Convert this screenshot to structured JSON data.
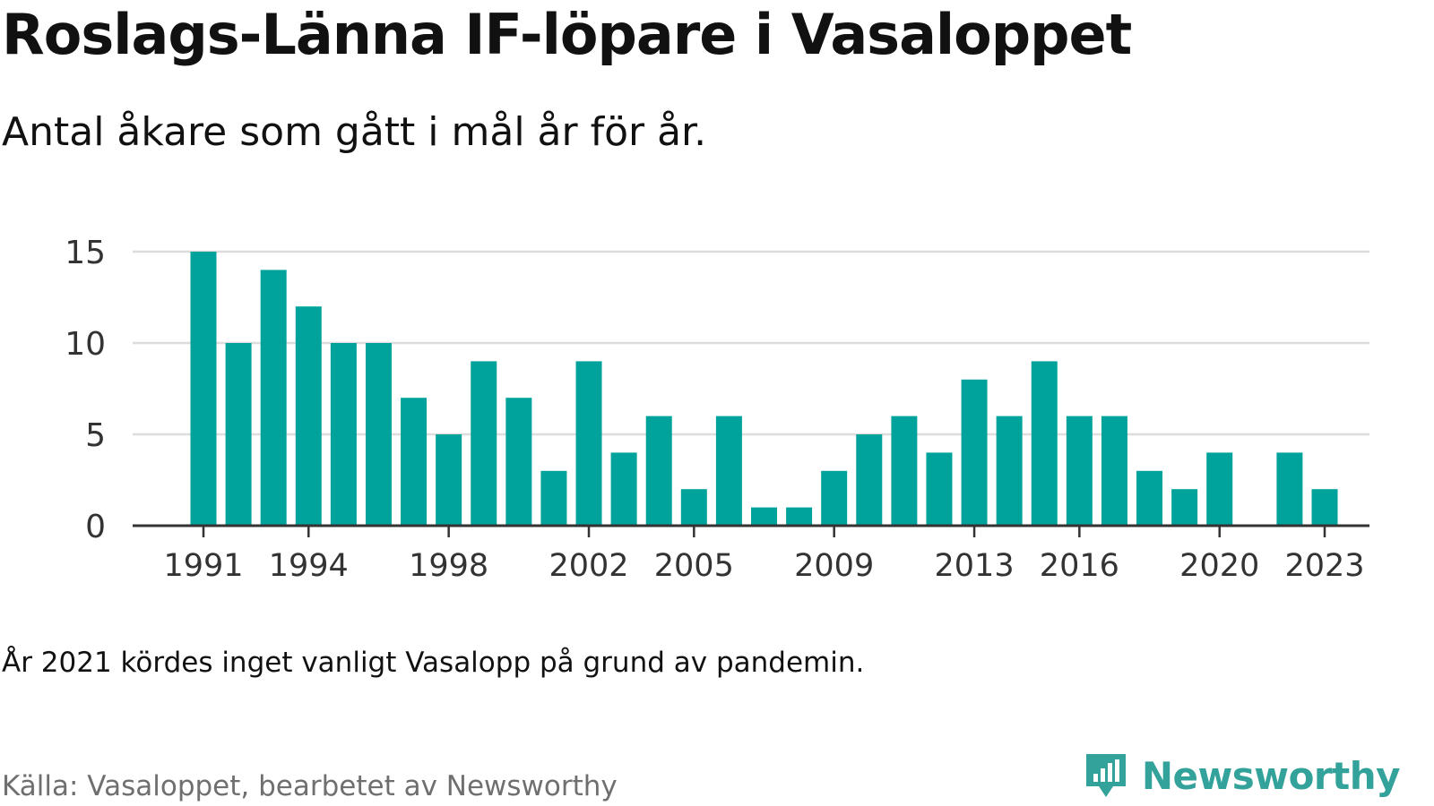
{
  "header": {
    "title": "Roslags-Länna IF-löpare i Vasaloppet",
    "subtitle": "Antal åkare som gått i mål år för år."
  },
  "footer": {
    "note": "År 2021 kördes inget vanligt Vasalopp på grund av pandemin.",
    "source": "Källa: Vasaloppet, bearbetet av Newsworthy",
    "brand": "Newsworthy",
    "brand_icon": "newsworthy-chart-icon"
  },
  "colors": {
    "bar": "#00a39b",
    "grid": "#dddddd",
    "axis": "#333333",
    "brand": "#33a29a",
    "source_text": "#6f6f6f"
  },
  "chart_data": {
    "type": "bar",
    "title": "Roslags-Länna IF-löpare i Vasaloppet",
    "x": [
      1991,
      1992,
      1993,
      1994,
      1995,
      1996,
      1997,
      1998,
      1999,
      2000,
      2001,
      2002,
      2003,
      2004,
      2005,
      2006,
      2007,
      2008,
      2009,
      2010,
      2011,
      2012,
      2013,
      2014,
      2015,
      2016,
      2017,
      2018,
      2019,
      2020,
      2021,
      2022,
      2023
    ],
    "values": [
      15,
      10,
      14,
      12,
      10,
      10,
      7,
      5,
      9,
      7,
      3,
      9,
      4,
      6,
      2,
      6,
      1,
      1,
      3,
      5,
      6,
      4,
      8,
      6,
      9,
      6,
      6,
      3,
      2,
      4,
      0,
      4,
      2
    ],
    "x_ticks": [
      1991,
      1994,
      1998,
      2002,
      2005,
      2009,
      2013,
      2016,
      2020,
      2023
    ],
    "y_ticks": [
      0,
      5,
      10,
      15
    ],
    "ylim": [
      0,
      15
    ],
    "grid": "horizontal"
  }
}
